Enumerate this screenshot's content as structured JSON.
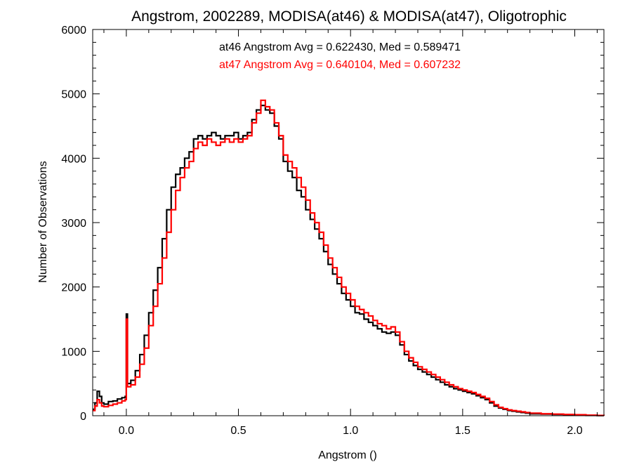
{
  "chart_data": {
    "type": "line",
    "step": true,
    "title": "Angstrom, 2002289, MODISA(at46) & MODISA(at47), Oligotrophic",
    "xlabel": "Angstrom ()",
    "ylabel": "Number of Observations",
    "xlim": [
      -0.15,
      2.13
    ],
    "ylim": [
      0,
      6000
    ],
    "xticks": [
      0.0,
      0.5,
      1.0,
      1.5,
      2.0
    ],
    "xtick_labels": [
      "0.0",
      "0.5",
      "1.0",
      "1.5",
      "2.0"
    ],
    "yticks": [
      0,
      1000,
      2000,
      3000,
      4000,
      5000,
      6000
    ],
    "ytick_labels": [
      "0",
      "1000",
      "2000",
      "3000",
      "4000",
      "5000",
      "6000"
    ],
    "grid": false,
    "annotations": [
      {
        "text": "at46 Angstrom Avg = 0.622430, Med = 0.589471",
        "color": "#000000"
      },
      {
        "text": "at47 Angstrom Avg = 0.640104, Med = 0.607232",
        "color": "#ff0000"
      }
    ],
    "series": [
      {
        "color": "#000000",
        "x": [
          -0.15,
          -0.14,
          -0.13,
          -0.12,
          -0.11,
          -0.1,
          -0.08,
          -0.06,
          -0.04,
          -0.02,
          -0.005,
          0.0,
          0.005,
          0.02,
          0.04,
          0.06,
          0.08,
          0.1,
          0.12,
          0.14,
          0.16,
          0.18,
          0.2,
          0.22,
          0.24,
          0.26,
          0.28,
          0.3,
          0.32,
          0.34,
          0.36,
          0.38,
          0.4,
          0.42,
          0.44,
          0.46,
          0.48,
          0.5,
          0.52,
          0.54,
          0.56,
          0.58,
          0.6,
          0.62,
          0.64,
          0.66,
          0.68,
          0.7,
          0.72,
          0.74,
          0.76,
          0.78,
          0.8,
          0.82,
          0.84,
          0.86,
          0.88,
          0.9,
          0.92,
          0.94,
          0.96,
          0.98,
          1.0,
          1.02,
          1.04,
          1.06,
          1.08,
          1.1,
          1.12,
          1.14,
          1.16,
          1.18,
          1.2,
          1.22,
          1.24,
          1.26,
          1.28,
          1.3,
          1.32,
          1.34,
          1.36,
          1.38,
          1.4,
          1.42,
          1.44,
          1.46,
          1.48,
          1.5,
          1.52,
          1.54,
          1.56,
          1.58,
          1.6,
          1.62,
          1.64,
          1.66,
          1.68,
          1.7,
          1.72,
          1.74,
          1.76,
          1.78,
          1.8,
          1.85,
          1.9,
          1.95,
          2.0,
          2.05,
          2.1,
          2.13
        ],
        "y": [
          100,
          200,
          380,
          300,
          200,
          180,
          220,
          230,
          260,
          280,
          300,
          1580,
          500,
          550,
          700,
          950,
          1250,
          1600,
          1950,
          2300,
          2750,
          3200,
          3550,
          3750,
          3850,
          4000,
          4100,
          4300,
          4350,
          4300,
          4350,
          4400,
          4350,
          4300,
          4350,
          4350,
          4400,
          4300,
          4350,
          4400,
          4600,
          4750,
          4820,
          4750,
          4700,
          4500,
          4300,
          3950,
          3800,
          3700,
          3500,
          3400,
          3200,
          3050,
          2900,
          2750,
          2550,
          2350,
          2200,
          2050,
          1900,
          1800,
          1700,
          1600,
          1580,
          1500,
          1450,
          1400,
          1350,
          1300,
          1280,
          1300,
          1250,
          1100,
          950,
          850,
          780,
          720,
          680,
          640,
          600,
          560,
          520,
          480,
          450,
          420,
          400,
          380,
          360,
          340,
          310,
          280,
          250,
          200,
          150,
          120,
          100,
          80,
          70,
          60,
          50,
          40,
          30,
          25,
          20,
          15,
          10,
          5,
          3,
          0
        ]
      },
      {
        "color": "#ff0000",
        "x": [
          -0.15,
          -0.14,
          -0.13,
          -0.12,
          -0.11,
          -0.1,
          -0.08,
          -0.06,
          -0.04,
          -0.02,
          -0.005,
          0.0,
          0.005,
          0.02,
          0.04,
          0.06,
          0.08,
          0.1,
          0.12,
          0.14,
          0.16,
          0.18,
          0.2,
          0.22,
          0.24,
          0.26,
          0.28,
          0.3,
          0.32,
          0.34,
          0.36,
          0.38,
          0.4,
          0.42,
          0.44,
          0.46,
          0.48,
          0.5,
          0.52,
          0.54,
          0.56,
          0.58,
          0.6,
          0.62,
          0.64,
          0.66,
          0.68,
          0.7,
          0.72,
          0.74,
          0.76,
          0.78,
          0.8,
          0.82,
          0.84,
          0.86,
          0.88,
          0.9,
          0.92,
          0.94,
          0.96,
          0.98,
          1.0,
          1.02,
          1.04,
          1.06,
          1.08,
          1.1,
          1.12,
          1.14,
          1.16,
          1.18,
          1.2,
          1.22,
          1.24,
          1.26,
          1.28,
          1.3,
          1.32,
          1.34,
          1.36,
          1.38,
          1.4,
          1.42,
          1.44,
          1.46,
          1.48,
          1.5,
          1.52,
          1.54,
          1.56,
          1.58,
          1.6,
          1.62,
          1.64,
          1.66,
          1.68,
          1.7,
          1.72,
          1.74,
          1.76,
          1.78,
          1.8,
          1.85,
          1.9,
          1.95,
          2.0,
          2.05,
          2.1,
          2.13
        ],
        "y": [
          80,
          150,
          250,
          200,
          150,
          140,
          160,
          180,
          200,
          230,
          250,
          1500,
          450,
          480,
          600,
          800,
          1050,
          1400,
          1700,
          2050,
          2450,
          2850,
          3200,
          3500,
          3700,
          3850,
          3950,
          4150,
          4250,
          4200,
          4300,
          4250,
          4200,
          4250,
          4300,
          4250,
          4300,
          4250,
          4300,
          4350,
          4550,
          4700,
          4900,
          4800,
          4750,
          4550,
          4350,
          4050,
          3950,
          3850,
          3700,
          3550,
          3350,
          3150,
          3000,
          2850,
          2650,
          2450,
          2300,
          2150,
          2000,
          1900,
          1800,
          1700,
          1650,
          1600,
          1550,
          1480,
          1430,
          1400,
          1350,
          1380,
          1300,
          1150,
          1000,
          900,
          830,
          760,
          720,
          680,
          640,
          600,
          560,
          520,
          480,
          450,
          420,
          400,
          380,
          360,
          330,
          300,
          270,
          220,
          170,
          130,
          110,
          90,
          80,
          70,
          60,
          50,
          40,
          30,
          25,
          20,
          15,
          8,
          5,
          0
        ]
      }
    ]
  }
}
